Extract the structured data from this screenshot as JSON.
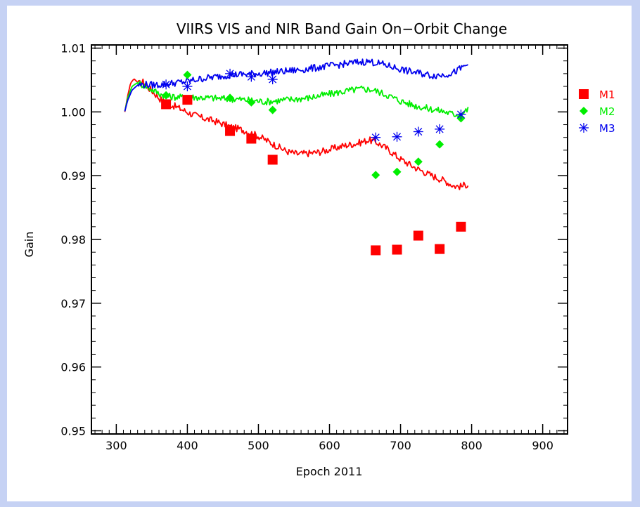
{
  "chart_data": {
    "type": "line",
    "title": "VIIRS VIS and NIR Band Gain On−Orbit Change",
    "xlabel": "Epoch 2011",
    "ylabel": "Gain",
    "xlim": [
      265,
      935
    ],
    "ylim": [
      0.95,
      1.0105
    ],
    "yview": [
      0.9495,
      1.0105
    ],
    "x_ticks": [
      300,
      400,
      500,
      600,
      700,
      800,
      900
    ],
    "x_tick_labels": [
      "300",
      "400",
      "500",
      "600",
      "700",
      "800",
      "900"
    ],
    "y_ticks": [
      0.95,
      0.96,
      0.97,
      0.98,
      0.99,
      1.0,
      1.01
    ],
    "y_tick_labels": [
      "0.95",
      "0.96",
      "0.97",
      "0.98",
      "0.99",
      "1.00",
      "1.01"
    ],
    "grid": false,
    "legend_position": "outside-right",
    "series": [
      {
        "name": "M1",
        "color": "#ff0000",
        "marker": "square",
        "line": [
          [
            312,
            1.0
          ],
          [
            316,
            1.0025
          ],
          [
            320,
            1.0045
          ],
          [
            325,
            1.0052
          ],
          [
            332,
            1.0044
          ],
          [
            338,
            1.0047
          ],
          [
            345,
            1.0038
          ],
          [
            352,
            1.0031
          ],
          [
            360,
            1.0022
          ],
          [
            370,
            1.0013
          ],
          [
            380,
            1.001
          ],
          [
            392,
            1.0004
          ],
          [
            405,
            0.9997
          ],
          [
            420,
            0.9991
          ],
          [
            440,
            0.9985
          ],
          [
            460,
            0.9977
          ],
          [
            480,
            0.9971
          ],
          [
            500,
            0.9962
          ],
          [
            520,
            0.995
          ],
          [
            540,
            0.9938
          ],
          [
            555,
            0.9934
          ],
          [
            570,
            0.9935
          ],
          [
            585,
            0.9937
          ],
          [
            600,
            0.9941
          ],
          [
            620,
            0.9947
          ],
          [
            640,
            0.9951
          ],
          [
            655,
            0.9956
          ],
          [
            665,
            0.9953
          ],
          [
            680,
            0.9943
          ],
          [
            700,
            0.9926
          ],
          [
            720,
            0.9913
          ],
          [
            740,
            0.9902
          ],
          [
            760,
            0.9893
          ],
          [
            775,
            0.9884
          ],
          [
            785,
            0.9883
          ],
          [
            795,
            0.9887
          ]
        ],
        "points": [
          [
            370,
            1.0012
          ],
          [
            400,
            1.0019
          ],
          [
            460,
            0.997
          ],
          [
            490,
            0.9958
          ],
          [
            520,
            0.9925
          ],
          [
            665,
            0.9783
          ],
          [
            695,
            0.9784
          ],
          [
            725,
            0.9806
          ],
          [
            755,
            0.9785
          ],
          [
            785,
            0.982
          ]
        ]
      },
      {
        "name": "M2",
        "color": "#00ee00",
        "marker": "diamond",
        "line": [
          [
            312,
            1.0001
          ],
          [
            316,
            1.0022
          ],
          [
            322,
            1.004
          ],
          [
            330,
            1.0046
          ],
          [
            340,
            1.0041
          ],
          [
            350,
            1.0035
          ],
          [
            362,
            1.0028
          ],
          [
            375,
            1.0024
          ],
          [
            390,
            1.0023
          ],
          [
            410,
            1.0023
          ],
          [
            430,
            1.0022
          ],
          [
            450,
            1.0021
          ],
          [
            470,
            1.002
          ],
          [
            490,
            1.0018
          ],
          [
            510,
            1.0016
          ],
          [
            530,
            1.0018
          ],
          [
            550,
            1.002
          ],
          [
            570,
            1.0022
          ],
          [
            590,
            1.0026
          ],
          [
            610,
            1.003
          ],
          [
            630,
            1.0034
          ],
          [
            645,
            1.0036
          ],
          [
            660,
            1.0035
          ],
          [
            680,
            1.0027
          ],
          [
            700,
            1.0017
          ],
          [
            720,
            1.001
          ],
          [
            740,
            1.0005
          ],
          [
            760,
            1.0001
          ],
          [
            775,
            0.9996
          ],
          [
            785,
            0.9997
          ],
          [
            795,
            1.0004
          ]
        ],
        "points": [
          [
            370,
            1.0026
          ],
          [
            400,
            1.0058
          ],
          [
            460,
            1.0022
          ],
          [
            490,
            1.0015
          ],
          [
            520,
            1.0003
          ],
          [
            665,
            0.9901
          ],
          [
            695,
            0.9906
          ],
          [
            725,
            0.9922
          ],
          [
            755,
            0.9949
          ],
          [
            785,
            0.999
          ]
        ]
      },
      {
        "name": "M3",
        "color": "#0000ee",
        "marker": "asterisk",
        "line": [
          [
            312,
            1.0001
          ],
          [
            316,
            1.0018
          ],
          [
            322,
            1.0034
          ],
          [
            330,
            1.0042
          ],
          [
            340,
            1.0043
          ],
          [
            352,
            1.0042
          ],
          [
            365,
            1.0043
          ],
          [
            380,
            1.0045
          ],
          [
            400,
            1.0048
          ],
          [
            420,
            1.0052
          ],
          [
            440,
            1.0055
          ],
          [
            460,
            1.0058
          ],
          [
            480,
            1.0059
          ],
          [
            500,
            1.006
          ],
          [
            520,
            1.0062
          ],
          [
            540,
            1.0064
          ],
          [
            560,
            1.0066
          ],
          [
            580,
            1.0069
          ],
          [
            600,
            1.0072
          ],
          [
            620,
            1.0075
          ],
          [
            640,
            1.0078
          ],
          [
            655,
            1.0079
          ],
          [
            670,
            1.0076
          ],
          [
            690,
            1.007
          ],
          [
            710,
            1.0064
          ],
          [
            730,
            1.006
          ],
          [
            745,
            1.0057
          ],
          [
            760,
            1.0058
          ],
          [
            775,
            1.0062
          ],
          [
            785,
            1.0068
          ],
          [
            795,
            1.0075
          ]
        ],
        "points": [
          [
            370,
            1.0043
          ],
          [
            400,
            1.004
          ],
          [
            460,
            1.006
          ],
          [
            490,
            1.0055
          ],
          [
            520,
            1.0051
          ],
          [
            665,
            0.996
          ],
          [
            695,
            0.9961
          ],
          [
            725,
            0.9969
          ],
          [
            755,
            0.9973
          ],
          [
            785,
            0.9996
          ]
        ]
      }
    ]
  }
}
